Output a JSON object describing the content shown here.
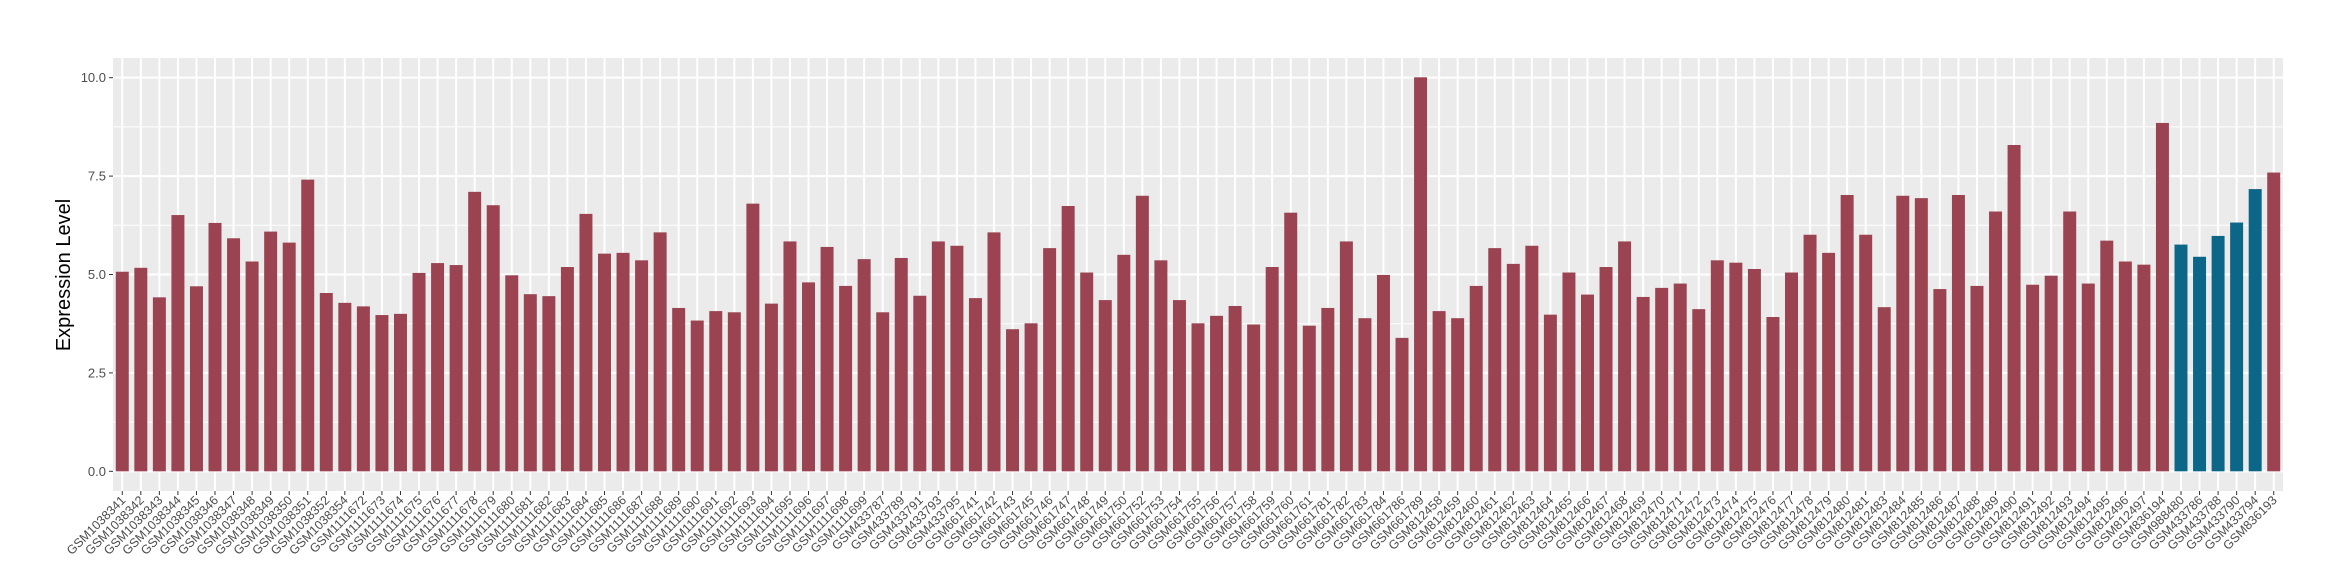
{
  "chart_data": {
    "type": "bar",
    "title": "",
    "xlabel": "",
    "ylabel": "Expression Level",
    "ylim": [
      -0.5,
      10.5
    ],
    "yticks": [
      "0.0",
      "2.5",
      "5.0",
      "7.5",
      "10.0"
    ],
    "grid": true,
    "legend": "none",
    "colors": {
      "group_a": "#9b4350",
      "group_b": "#0c6688",
      "panel": "#ebebeb",
      "grid": "#ffffff"
    },
    "categories": [
      "GSM1038341",
      "GSM1038342",
      "GSM1038343",
      "GSM1038344",
      "GSM1038345",
      "GSM1038346",
      "GSM1038347",
      "GSM1038348",
      "GSM1038349",
      "GSM1038350",
      "GSM1038351",
      "GSM1038352",
      "GSM1038354",
      "GSM1111672",
      "GSM1111673",
      "GSM1111674",
      "GSM1111675",
      "GSM1111676",
      "GSM1111677",
      "GSM1111678",
      "GSM1111679",
      "GSM1111680",
      "GSM1111681",
      "GSM1111682",
      "GSM1111683",
      "GSM1111684",
      "GSM1111685",
      "GSM1111686",
      "GSM1111687",
      "GSM1111688",
      "GSM1111689",
      "GSM1111690",
      "GSM1111691",
      "GSM1111692",
      "GSM1111693",
      "GSM1111694",
      "GSM1111695",
      "GSM1111696",
      "GSM1111697",
      "GSM1111698",
      "GSM1111699",
      "GSM433787",
      "GSM433789",
      "GSM433791",
      "GSM433793",
      "GSM433795",
      "GSM661741",
      "GSM661742",
      "GSM661743",
      "GSM661745",
      "GSM661746",
      "GSM661747",
      "GSM661748",
      "GSM661749",
      "GSM661750",
      "GSM661752",
      "GSM661753",
      "GSM661754",
      "GSM661755",
      "GSM661756",
      "GSM661757",
      "GSM661758",
      "GSM661759",
      "GSM661760",
      "GSM661761",
      "GSM661781",
      "GSM661782",
      "GSM661783",
      "GSM661784",
      "GSM661786",
      "GSM661789",
      "GSM812458",
      "GSM812459",
      "GSM812460",
      "GSM812461",
      "GSM812462",
      "GSM812463",
      "GSM812464",
      "GSM812465",
      "GSM812466",
      "GSM812467",
      "GSM812468",
      "GSM812469",
      "GSM812470",
      "GSM812471",
      "GSM812472",
      "GSM812473",
      "GSM812474",
      "GSM812475",
      "GSM812476",
      "GSM812477",
      "GSM812478",
      "GSM812479",
      "GSM812480",
      "GSM812481",
      "GSM812483",
      "GSM812484",
      "GSM812485",
      "GSM812486",
      "GSM812487",
      "GSM812488",
      "GSM812489",
      "GSM812490",
      "GSM812491",
      "GSM812492",
      "GSM812493",
      "GSM812494",
      "GSM812495",
      "GSM812496",
      "GSM812497",
      "GSM836194",
      "GSM988480",
      "GSM433786",
      "GSM433788",
      "GSM433790",
      "GSM433794",
      "GSM836193"
    ],
    "values": [
      5.07,
      5.17,
      4.42,
      6.51,
      4.7,
      6.31,
      5.92,
      5.33,
      6.09,
      5.81,
      7.41,
      4.53,
      4.28,
      4.19,
      3.97,
      4.0,
      5.04,
      5.29,
      5.24,
      7.1,
      6.76,
      4.98,
      4.5,
      4.45,
      5.19,
      6.54,
      5.53,
      5.55,
      5.36,
      6.07,
      4.15,
      3.83,
      4.07,
      4.04,
      6.8,
      4.26,
      5.84,
      4.8,
      5.7,
      4.71,
      5.39,
      4.04,
      5.42,
      4.46,
      5.84,
      5.73,
      4.4,
      6.07,
      3.61,
      3.76,
      5.67,
      6.74,
      5.05,
      4.35,
      5.5,
      7.0,
      5.36,
      4.35,
      3.76,
      3.95,
      4.2,
      3.73,
      5.19,
      6.57,
      3.7,
      4.15,
      5.84,
      3.89,
      4.99,
      3.39,
      10.01,
      4.07,
      3.89,
      4.71,
      5.67,
      5.27,
      5.73,
      3.98,
      5.05,
      4.49,
      5.19,
      5.84,
      4.43,
      4.66,
      4.77,
      4.12,
      5.36,
      5.3,
      5.14,
      3.92,
      5.05,
      6.01,
      5.55,
      7.02,
      6.01,
      4.17,
      7.0,
      6.94,
      4.63,
      7.02,
      4.71,
      6.6,
      8.29,
      4.74,
      4.97,
      6.6,
      4.77,
      5.86,
      5.33,
      5.25,
      8.85,
      5.76,
      5.45,
      5.98,
      6.32,
      7.17,
      7.59
    ],
    "groups": [
      "a",
      "a",
      "a",
      "a",
      "a",
      "a",
      "a",
      "a",
      "a",
      "a",
      "a",
      "a",
      "a",
      "a",
      "a",
      "a",
      "a",
      "a",
      "a",
      "a",
      "a",
      "a",
      "a",
      "a",
      "a",
      "a",
      "a",
      "a",
      "a",
      "a",
      "a",
      "a",
      "a",
      "a",
      "a",
      "a",
      "a",
      "a",
      "a",
      "a",
      "a",
      "a",
      "a",
      "a",
      "a",
      "a",
      "a",
      "a",
      "a",
      "a",
      "a",
      "a",
      "a",
      "a",
      "a",
      "a",
      "a",
      "a",
      "a",
      "a",
      "a",
      "a",
      "a",
      "a",
      "a",
      "a",
      "a",
      "a",
      "a",
      "a",
      "a",
      "a",
      "a",
      "a",
      "a",
      "a",
      "a",
      "a",
      "a",
      "a",
      "a",
      "a",
      "a",
      "a",
      "a",
      "a",
      "a",
      "a",
      "a",
      "a",
      "a",
      "a",
      "a",
      "a",
      "a",
      "a",
      "a",
      "a",
      "a",
      "a",
      "a",
      "a",
      "a",
      "a",
      "a",
      "a",
      "a",
      "a",
      "a",
      "a",
      "a",
      "b",
      "b",
      "b",
      "b",
      "b"
    ]
  }
}
